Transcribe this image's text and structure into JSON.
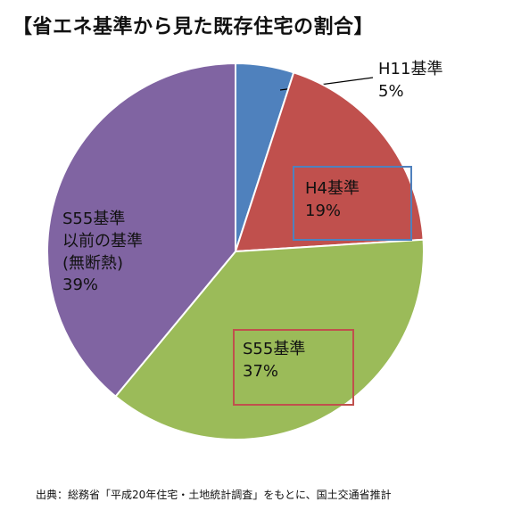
{
  "title": "【省エネ基準から見た既存住宅の割合】",
  "source": "出典：総務省「平成20年住宅・土地統計調査」をもとに、国土交通省推計",
  "chart_data": {
    "type": "pie",
    "slices": [
      {
        "name": "H11基準",
        "value": 5,
        "value_label": "5%",
        "color": "#4F81BD",
        "label_lines": [
          "H11基準",
          "5%"
        ]
      },
      {
        "name": "H4基準",
        "value": 19,
        "value_label": "19%",
        "color": "#C0504D",
        "label_lines": [
          "H4基準",
          "19%"
        ],
        "box_color": "#4F81BD"
      },
      {
        "name": "S55基準",
        "value": 37,
        "value_label": "37%",
        "color": "#9BBB59",
        "label_lines": [
          "S55基準",
          "37%"
        ],
        "box_color": "#C0504D"
      },
      {
        "name": "S55基準以前の基準(無断熱)",
        "value": 39,
        "value_label": "39%",
        "color": "#8064A2",
        "label_lines": [
          "S55基準",
          "以前の基準",
          "(無断熱)",
          "39%"
        ]
      }
    ]
  }
}
